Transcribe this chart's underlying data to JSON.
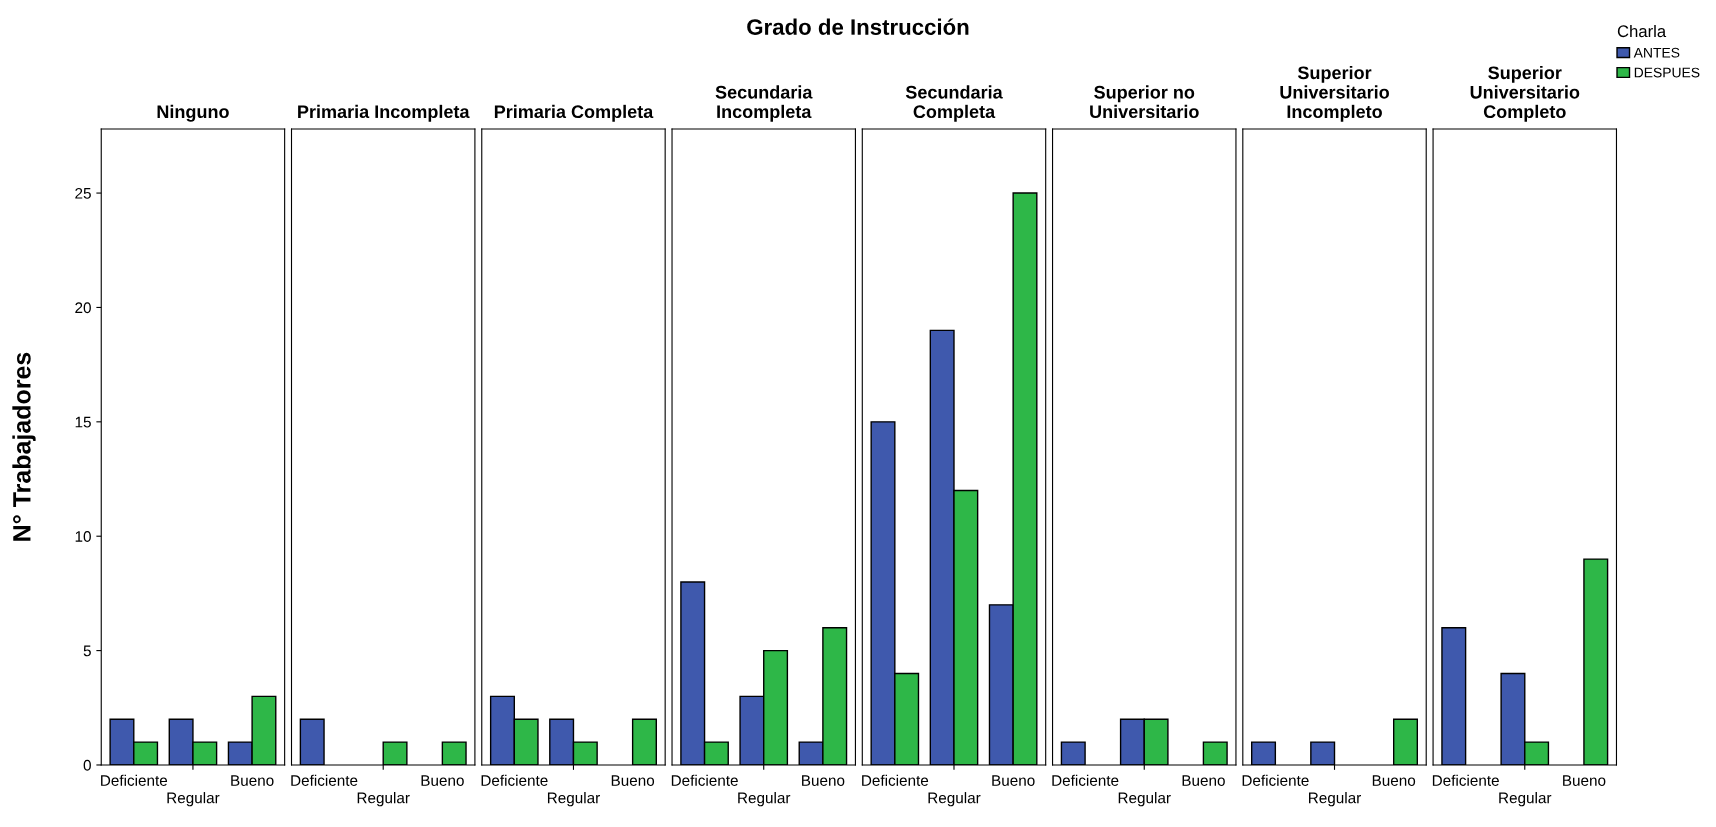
{
  "chart_data": [
    {
      "type": "bar",
      "title": "Ninguno",
      "ylabel": "N° Trabajadores",
      "annotations": [
        "Grado de Instrucción"
      ],
      "categories": [
        "Deficiente",
        "Regular",
        "Bueno"
      ],
      "ylim": [
        0,
        27.8
      ],
      "yticks": [
        0,
        5,
        10,
        15,
        20,
        25
      ],
      "grid": false,
      "legend": "top right",
      "legend_title": "Charla",
      "series": [
        {
          "name": "ANTES",
          "color": "#3f59ad",
          "values": [
            2,
            2,
            1
          ]
        },
        {
          "name": "DESPUES",
          "color": "#2eb748",
          "values": [
            1,
            1,
            3
          ]
        }
      ]
    },
    {
      "type": "bar",
      "title": "Primaria Incompleta",
      "categories": [
        "Deficiente",
        "Regular",
        "Bueno"
      ],
      "ylim": [
        0,
        27.8
      ],
      "tick_labels": "x",
      "grid": false,
      "series": [
        {
          "color": "#3f59ad",
          "values": [
            2,
            null,
            null
          ]
        },
        {
          "color": "#2eb748",
          "values": [
            null,
            1,
            1
          ]
        }
      ]
    },
    {
      "type": "bar",
      "title": "Primaria Completa",
      "categories": [
        "Deficiente",
        "Regular",
        "Bueno"
      ],
      "ylim": [
        0,
        27.8
      ],
      "tick_labels": "x",
      "grid": false,
      "series": [
        {
          "color": "#3f59ad",
          "values": [
            3,
            2,
            null
          ]
        },
        {
          "color": "#2eb748",
          "values": [
            2,
            1,
            2
          ]
        }
      ]
    },
    {
      "type": "bar",
      "title": "Secundaria\nIncompleta",
      "categories": [
        "Deficiente",
        "Regular",
        "Bueno"
      ],
      "ylim": [
        0,
        27.8
      ],
      "tick_labels": "x",
      "grid": false,
      "series": [
        {
          "color": "#3f59ad",
          "values": [
            8,
            3,
            1
          ]
        },
        {
          "color": "#2eb748",
          "values": [
            1,
            5,
            6
          ]
        }
      ]
    },
    {
      "type": "bar",
      "title": "Secundaria\nCompleta",
      "categories": [
        "Deficiente",
        "Regular",
        "Bueno"
      ],
      "ylim": [
        0,
        27.8
      ],
      "tick_labels": "x",
      "grid": false,
      "series": [
        {
          "color": "#3f59ad",
          "values": [
            15,
            19,
            7
          ]
        },
        {
          "color": "#2eb748",
          "values": [
            4,
            12,
            25
          ]
        }
      ]
    },
    {
      "type": "bar",
      "title": "Superior no\nUniversitario",
      "categories": [
        "Deficiente",
        "Regular",
        "Bueno"
      ],
      "ylim": [
        0,
        27.8
      ],
      "tick_labels": "x",
      "grid": false,
      "series": [
        {
          "color": "#3f59ad",
          "values": [
            1,
            2,
            null
          ]
        },
        {
          "color": "#2eb748",
          "values": [
            null,
            2,
            1
          ]
        }
      ]
    },
    {
      "type": "bar",
      "title": "Superior\nUniversitario\nIncompleto",
      "categories": [
        "Deficiente",
        "Regular",
        "Bueno"
      ],
      "ylim": [
        0,
        27.8
      ],
      "tick_labels": "x",
      "grid": false,
      "series": [
        {
          "color": "#3f59ad",
          "values": [
            1,
            1,
            null
          ]
        },
        {
          "color": "#2eb748",
          "values": [
            null,
            null,
            2
          ]
        }
      ]
    },
    {
      "type": "bar",
      "title": "Superior\nUniversitario\nCompleto",
      "categories": [
        "Deficiente",
        "Regular",
        "Bueno"
      ],
      "ylim": [
        0,
        27.8
      ],
      "tick_labels": "x",
      "grid": false,
      "series": [
        {
          "color": "#3f59ad",
          "values": [
            6,
            4,
            null
          ]
        },
        {
          "color": "#2eb748",
          "values": [
            null,
            1,
            9
          ]
        }
      ]
    }
  ]
}
